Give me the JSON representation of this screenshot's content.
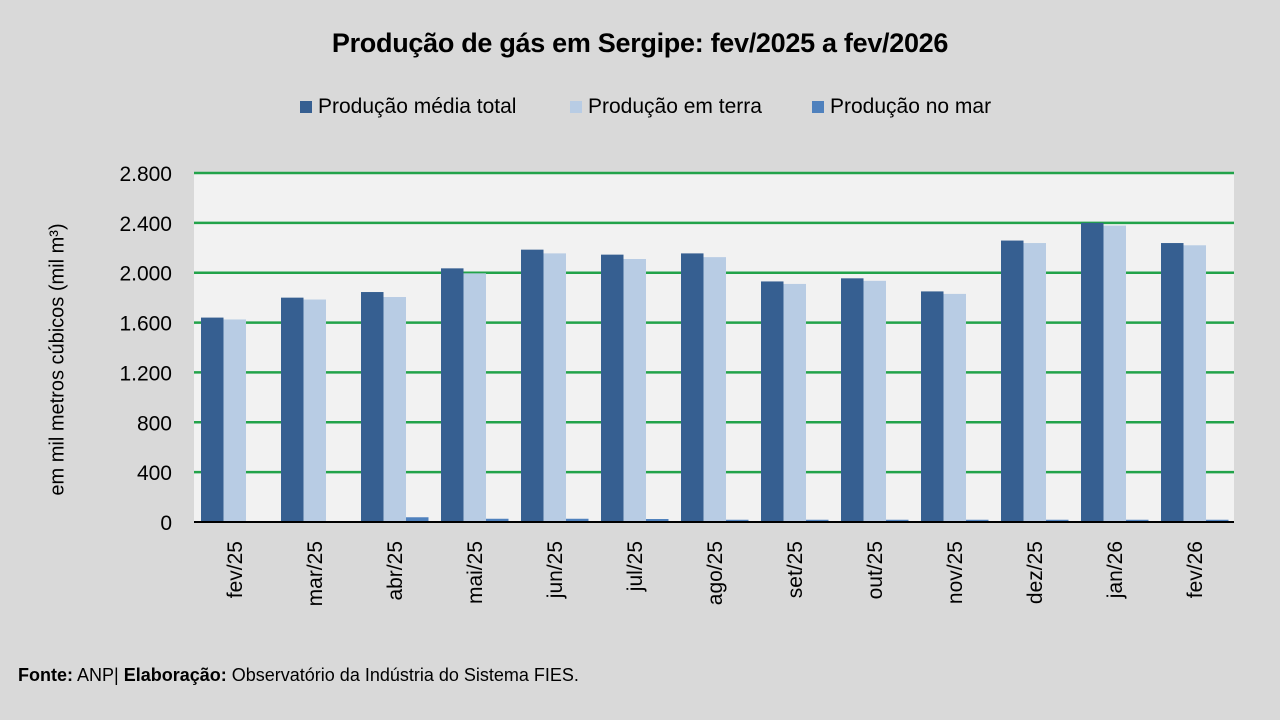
{
  "colors": {
    "total": "#365f91",
    "terra": "#b8cce4",
    "mar": "#4f81bd",
    "grid": "#22a34a",
    "plot_bg": "#f2f2f2",
    "axis": "#000000"
  },
  "footer": {
    "fonte_label": "Fonte:",
    "fonte_value": "ANP|",
    "elab_label": "Elaboração:",
    "elab_value": "Observatório da Indústria do Sistema FIES."
  },
  "chart_data": {
    "type": "bar",
    "title": "Produção de gás em Sergipe: fev/2025 a fev/2026",
    "xlabel": "",
    "ylabel": "em mil metros cúbicos (mil m³)",
    "ylim": [
      0,
      2800
    ],
    "yticks": [
      0,
      400,
      800,
      1200,
      1600,
      2000,
      2400,
      2800
    ],
    "ytick_labels": [
      "0",
      "400",
      "800",
      "1.200",
      "1.600",
      "2.000",
      "2.400",
      "2.800"
    ],
    "grid": true,
    "legend_position": "top",
    "categories": [
      "fev/25",
      "mar/25",
      "abr/25",
      "mai/25",
      "jun/25",
      "jul/25",
      "ago/25",
      "set/25",
      "out/25",
      "nov/25",
      "dez/25",
      "jan/26",
      "fev/26"
    ],
    "series": [
      {
        "name": "Produção média total",
        "color_key": "total",
        "values": [
          1640,
          1800,
          1845,
          2035,
          2185,
          2145,
          2155,
          1930,
          1955,
          1850,
          2258,
          2400,
          2238
        ]
      },
      {
        "name": "Produção em terra",
        "color_key": "terra",
        "values": [
          1625,
          1785,
          1805,
          1995,
          2155,
          2110,
          2125,
          1910,
          1935,
          1830,
          2238,
          2378,
          2220
        ]
      },
      {
        "name": "Produção no mar",
        "color_key": "mar",
        "values": [
          3,
          3,
          38,
          26,
          26,
          24,
          18,
          18,
          18,
          18,
          18,
          18,
          18
        ]
      }
    ]
  }
}
